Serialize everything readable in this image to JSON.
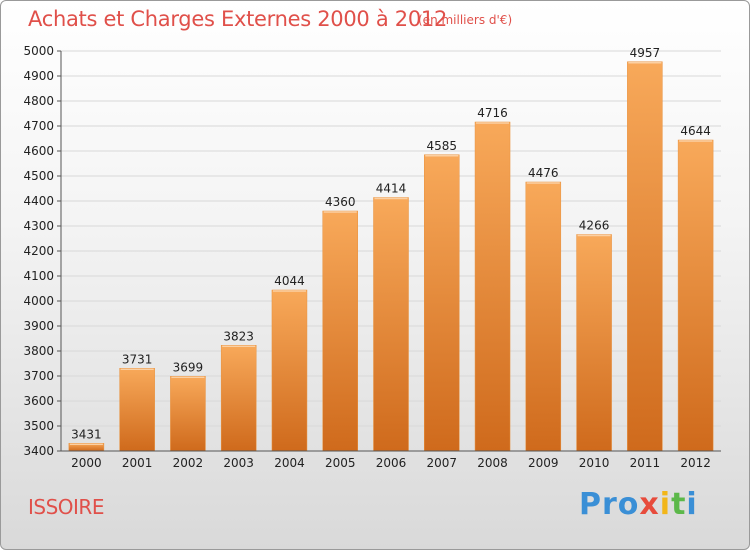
{
  "header": {
    "title": "Achats et Charges Externes 2000 à 2012",
    "unit": "(en milliers d'€)"
  },
  "footer": {
    "city": "ISSOIRE",
    "logo": "Proxiti",
    "logo_letters": [
      "Pro",
      "x",
      "i",
      "t",
      "i"
    ]
  },
  "colors": {
    "title": "#e0504a",
    "bar_top": "#f8a95a",
    "bar_bottom": "#cf6a1c",
    "grid": "#d8d8d8"
  },
  "chart_data": {
    "type": "bar",
    "title": "Achats et Charges Externes 2000 à 2012",
    "xlabel": "",
    "ylabel": "",
    "categories": [
      "2000",
      "2001",
      "2002",
      "2003",
      "2004",
      "2005",
      "2006",
      "2007",
      "2008",
      "2009",
      "2010",
      "2011",
      "2012"
    ],
    "values": [
      3431,
      3731,
      3699,
      3823,
      4044,
      4360,
      4414,
      4585,
      4716,
      4476,
      4266,
      4957,
      4644
    ],
    "ylim": [
      3400,
      5000
    ],
    "yticks": [
      3400,
      3500,
      3600,
      3700,
      3800,
      3900,
      4000,
      4100,
      4200,
      4300,
      4400,
      4500,
      4600,
      4700,
      4800,
      4900,
      5000
    ],
    "grid": true,
    "legend": "none"
  }
}
